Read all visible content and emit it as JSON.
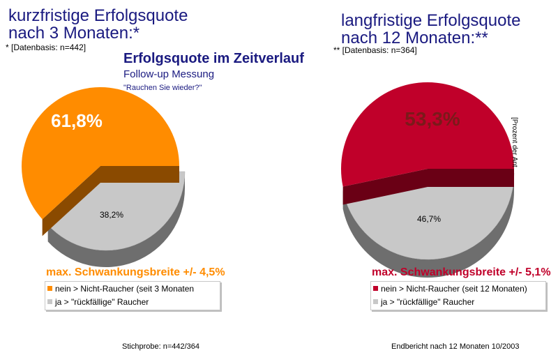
{
  "colors": {
    "orange": "#ff8c00",
    "orange_dark": "#8a4a00",
    "red": "#c0002a",
    "red_dark": "#6a0015",
    "grey": "#c8c8c8",
    "grey_dark": "#6e6e6e",
    "title_blue": "#1a1a80"
  },
  "header": {
    "title": "Erfolgsquote im Zeitverlauf",
    "subtitle": "Follow-up Messung",
    "question": "\"Rauchen Sie wieder?\""
  },
  "chart_data": [
    {
      "type": "pie",
      "title_line1": "kurzfristige Erfolgsquote",
      "title_line2": "nach 3 Monaten:*",
      "basis": "* [Datenbasis: n=442]",
      "slices": [
        {
          "label": "nein > Nicht-Raucher (seit 3 Monaten",
          "value": 61.8,
          "display": "61,8%",
          "color": "#ff8c00"
        },
        {
          "label": "ja > \"rückfällige\" Raucher",
          "value": 38.2,
          "display": "38,2%",
          "color": "#c8c8c8"
        }
      ],
      "variation": "max. Schwankungsbreite +/- 4,5%",
      "variation_color": "#ff8c00",
      "legend_placement": "bottom"
    },
    {
      "type": "pie",
      "title_line1": "langfristige Erfolgsquote",
      "title_line2": "nach 12 Monaten:**",
      "basis": "** [Datenbasis: n=364]",
      "slices": [
        {
          "label": "nein > Nicht-Raucher (seit 12 Monaten)",
          "value": 53.3,
          "display": "53,3%",
          "color": "#c0002a"
        },
        {
          "label": "ja > \"rückfällige\" Raucher",
          "value": 46.7,
          "display": "46,7%",
          "color": "#c8c8c8"
        }
      ],
      "variation": "max. Schwankungsbreite +/- 5,1%",
      "variation_color": "#c0002a",
      "legend_placement": "bottom",
      "axis_note": "[Prozent der Ant"
    }
  ],
  "footer": {
    "sample": "Stichprobe: n=442/364",
    "report": "Endbericht nach 12 Monaten 10/2003"
  }
}
